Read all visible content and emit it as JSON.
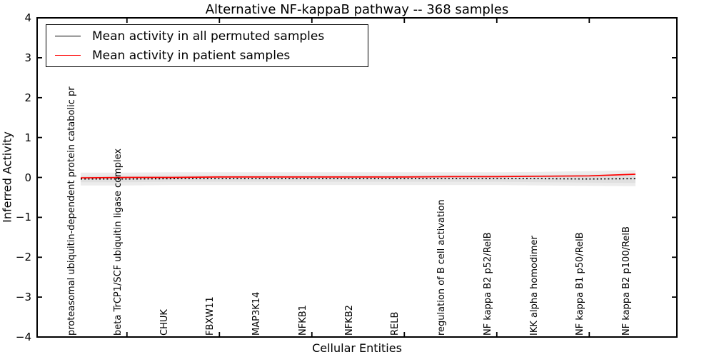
{
  "title": "Alternative NF-kappaB pathway -- 368 samples",
  "legend": {
    "items": [
      {
        "label": "Mean activity in all permuted samples",
        "color": "#000000"
      },
      {
        "label": "Mean activity in patient samples",
        "color": "#ff0000"
      }
    ]
  },
  "chart_data": {
    "type": "line",
    "title": "Alternative NF-kappaB pathway -- 368 samples",
    "xlabel": "Cellular Entities",
    "ylabel": "Inferred Activity",
    "ylim": [
      -4,
      4
    ],
    "yticks": [
      4,
      3,
      2,
      1,
      0,
      -1,
      -2,
      -3,
      -4
    ],
    "grid": false,
    "legend_position": "upper left",
    "categories": [
      "proteasomal ubiquitin-dependent protein catabolic pr",
      "beta TrCP1/SCF ubiquitin ligase complex",
      "CHUK",
      "FBXW11",
      "MAP3K14",
      "NFKB1",
      "NFKB2",
      "RELB",
      "regulation of B cell activation",
      "NF kappa B2 p52/RelB",
      "IKK alpha homodimer",
      "NF kappa B1 p50/RelB",
      "NF kappa B2 p100/RelB"
    ],
    "x_tick_indices": [
      1,
      3,
      5,
      7,
      9,
      11
    ],
    "series": [
      {
        "name": "Mean activity in all permuted samples",
        "color": "#000000",
        "style": "dashed",
        "values": [
          -0.04,
          -0.04,
          -0.03,
          -0.03,
          -0.03,
          -0.03,
          -0.03,
          -0.03,
          -0.03,
          -0.03,
          -0.03,
          -0.04,
          -0.03
        ]
      },
      {
        "name": "Mean activity in patient samples",
        "color": "#ff0000",
        "style": "solid",
        "values": [
          -0.01,
          0.0,
          0.0,
          0.01,
          0.01,
          0.01,
          0.01,
          0.01,
          0.02,
          0.02,
          0.03,
          0.04,
          0.08
        ]
      }
    ],
    "bands": [
      {
        "color": "#ececec",
        "upper": [
          0.12,
          0.12,
          0.13,
          0.13,
          0.13,
          0.13,
          0.13,
          0.13,
          0.13,
          0.13,
          0.14,
          0.16,
          0.18
        ],
        "lower": [
          -0.2,
          -0.2,
          -0.19,
          -0.19,
          -0.19,
          -0.19,
          -0.19,
          -0.19,
          -0.19,
          -0.19,
          -0.2,
          -0.21,
          -0.22
        ]
      },
      {
        "color": "#e0e0e0",
        "upper": [
          0.04,
          0.04,
          0.05,
          0.05,
          0.05,
          0.05,
          0.05,
          0.05,
          0.05,
          0.05,
          0.06,
          0.07,
          0.08
        ],
        "lower": [
          -0.12,
          -0.12,
          -0.11,
          -0.11,
          -0.11,
          -0.11,
          -0.11,
          -0.11,
          -0.11,
          -0.11,
          -0.12,
          -0.13,
          -0.14
        ]
      }
    ]
  }
}
